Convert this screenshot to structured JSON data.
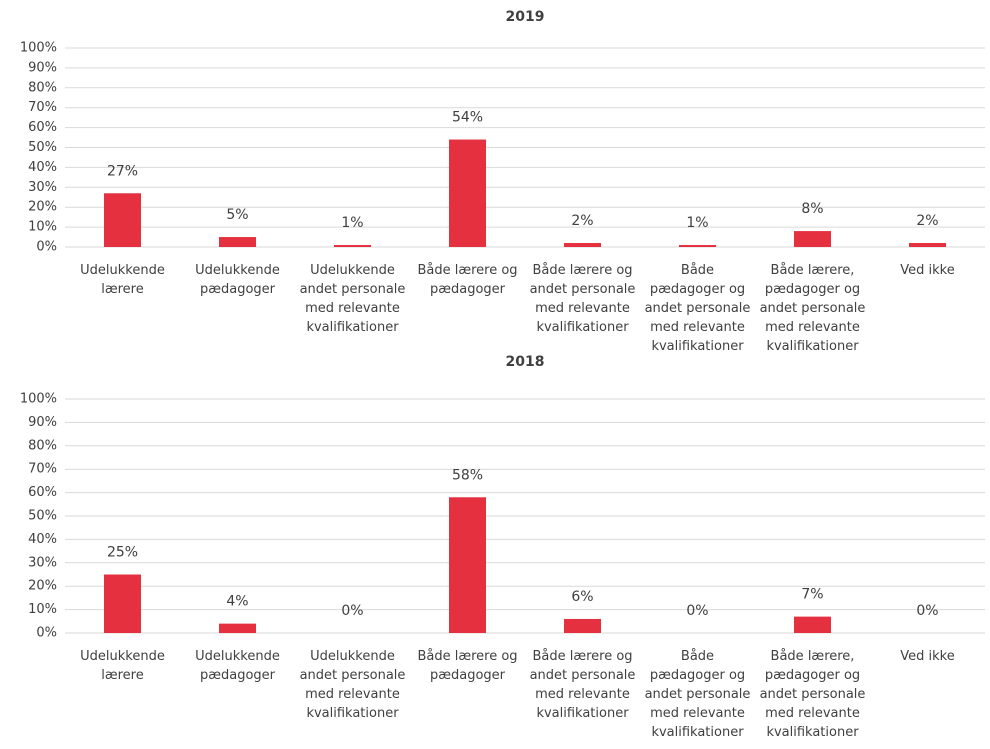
{
  "chart_data": [
    {
      "type": "bar",
      "title": "2019",
      "categories": [
        "Udelukkende lærere",
        "Udelukkende pædagoger",
        "Udelukkende andet personale med relevante kvalifikationer",
        "Både lærere og pædagoger",
        "Både lærere og andet personale med relevante kvalifikationer",
        "Både pædagoger og andet personale med relevante kvalifikationer",
        "Både lærere, pædagoger og andet personale med relevante kvalifikationer",
        "Ved ikke"
      ],
      "values": [
        27,
        5,
        1,
        54,
        2,
        1,
        8,
        2
      ],
      "value_labels": [
        "27%",
        "5%",
        "1%",
        "54%",
        "2%",
        "1%",
        "8%",
        "2%"
      ],
      "color": "#e4303f",
      "ylim": [
        0,
        100
      ],
      "yticks": [
        {
          "value": 0,
          "label": "0%"
        },
        {
          "value": 10,
          "label": "10%"
        },
        {
          "value": 20,
          "label": "20%"
        },
        {
          "value": 30,
          "label": "30%"
        },
        {
          "value": 40,
          "label": "40%"
        },
        {
          "value": 50,
          "label": "50%"
        },
        {
          "value": 60,
          "label": "60%"
        },
        {
          "value": 70,
          "label": "70%"
        },
        {
          "value": 80,
          "label": "80%"
        },
        {
          "value": 90,
          "label": "90%"
        },
        {
          "value": 100,
          "label": "100%"
        }
      ],
      "grid": true
    },
    {
      "type": "bar",
      "title": "2018",
      "categories": [
        "Udelukkende lærere",
        "Udelukkende pædagoger",
        "Udelukkende andet personale med relevante kvalifikationer",
        "Både lærere og pædagoger",
        "Både lærere og andet personale med relevante kvalifikationer",
        "Både pædagoger og andet personale med relevante kvalifikationer",
        "Både lærere, pædagoger og andet personale med relevante kvalifikationer",
        "Ved ikke"
      ],
      "values": [
        25,
        4,
        0,
        58,
        6,
        0,
        7,
        0
      ],
      "value_labels": [
        "25%",
        "4%",
        "0%",
        "58%",
        "6%",
        "0%",
        "7%",
        "0%"
      ],
      "color": "#e4303f",
      "ylim": [
        0,
        100
      ],
      "yticks": [
        {
          "value": 0,
          "label": "0%"
        },
        {
          "value": 10,
          "label": "10%"
        },
        {
          "value": 20,
          "label": "20%"
        },
        {
          "value": 30,
          "label": "30%"
        },
        {
          "value": 40,
          "label": "40%"
        },
        {
          "value": 50,
          "label": "50%"
        },
        {
          "value": 60,
          "label": "60%"
        },
        {
          "value": 70,
          "label": "70%"
        },
        {
          "value": 80,
          "label": "80%"
        },
        {
          "value": 90,
          "label": "90%"
        },
        {
          "value": 100,
          "label": "100%"
        }
      ],
      "grid": true
    }
  ]
}
